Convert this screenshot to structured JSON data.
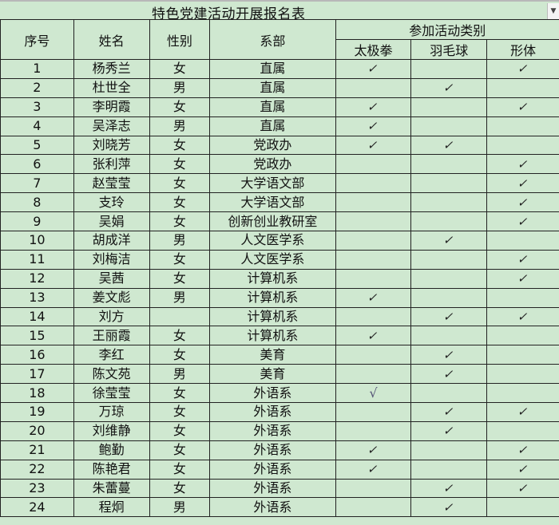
{
  "sheet": {
    "title": "特色党建活动开展报名表",
    "dropdown_icon": "triangle-down-icon",
    "headers": {
      "index": "序号",
      "name": "姓名",
      "gender": "性别",
      "department": "系部",
      "activity_group": "参加活动类别",
      "activities": [
        "太极拳",
        "羽毛球",
        "形体"
      ]
    },
    "rows": [
      {
        "index": "1",
        "name": "杨秀兰",
        "gender": "女",
        "department": "直属",
        "checks": [
          "✓",
          "",
          "✓"
        ]
      },
      {
        "index": "2",
        "name": "杜世全",
        "gender": "男",
        "department": "直属",
        "checks": [
          "",
          "✓",
          ""
        ]
      },
      {
        "index": "3",
        "name": "李明霞",
        "gender": "女",
        "department": "直属",
        "checks": [
          "✓",
          "",
          "✓"
        ]
      },
      {
        "index": "4",
        "name": "吴泽志",
        "gender": "男",
        "department": "直属",
        "checks": [
          "✓",
          "",
          ""
        ]
      },
      {
        "index": "5",
        "name": "刘晓芳",
        "gender": "女",
        "department": "党政办",
        "checks": [
          "✓",
          "✓",
          ""
        ]
      },
      {
        "index": "6",
        "name": "张利萍",
        "gender": "女",
        "department": "党政办",
        "checks": [
          "",
          "",
          "✓"
        ]
      },
      {
        "index": "7",
        "name": "赵莹莹",
        "gender": "女",
        "department": "大学语文部",
        "checks": [
          "",
          "",
          "✓"
        ]
      },
      {
        "index": "8",
        "name": "支玲",
        "gender": "女",
        "department": "大学语文部",
        "checks": [
          "",
          "",
          "✓"
        ]
      },
      {
        "index": "9",
        "name": "吴娟",
        "gender": "女",
        "department": "创新创业教研室",
        "checks": [
          "",
          "",
          "✓"
        ]
      },
      {
        "index": "10",
        "name": "胡成洋",
        "gender": "男",
        "department": "人文医学系",
        "checks": [
          "",
          "✓",
          ""
        ]
      },
      {
        "index": "11",
        "name": "刘梅洁",
        "gender": "女",
        "department": "人文医学系",
        "checks": [
          "",
          "",
          "✓"
        ]
      },
      {
        "index": "12",
        "name": "吴茜",
        "gender": "女",
        "department": "计算机系",
        "checks": [
          "",
          "",
          "✓"
        ]
      },
      {
        "index": "13",
        "name": "姜文彪",
        "gender": "男",
        "department": "计算机系",
        "checks": [
          "✓",
          "",
          ""
        ]
      },
      {
        "index": "14",
        "name": "刘方",
        "gender": "",
        "department": "计算机系",
        "checks": [
          "",
          "✓",
          "✓"
        ]
      },
      {
        "index": "15",
        "name": "王丽霞",
        "gender": "女",
        "department": "计算机系",
        "checks": [
          "✓",
          "",
          ""
        ]
      },
      {
        "index": "16",
        "name": "李红",
        "gender": "女",
        "department": "美育",
        "checks": [
          "",
          "✓",
          ""
        ]
      },
      {
        "index": "17",
        "name": "陈文苑",
        "gender": "男",
        "department": "美育",
        "checks": [
          "",
          "✓",
          ""
        ]
      },
      {
        "index": "18",
        "name": "徐莹莹",
        "gender": "女",
        "department": "外语系",
        "checks": [
          "√",
          "",
          ""
        ]
      },
      {
        "index": "19",
        "name": "万琼",
        "gender": "女",
        "department": "外语系",
        "checks": [
          "",
          "✓",
          "✓"
        ]
      },
      {
        "index": "20",
        "name": "刘维静",
        "gender": "女",
        "department": "外语系",
        "checks": [
          "",
          "✓",
          ""
        ]
      },
      {
        "index": "21",
        "name": "鲍勤",
        "gender": "女",
        "department": "外语系",
        "checks": [
          "✓",
          "",
          "✓"
        ]
      },
      {
        "index": "22",
        "name": "陈艳君",
        "gender": "女",
        "department": "外语系",
        "checks": [
          "✓",
          "",
          "✓"
        ]
      },
      {
        "index": "23",
        "name": "朱蕾蔓",
        "gender": "女",
        "department": "外语系",
        "checks": [
          "",
          "✓",
          "✓"
        ]
      },
      {
        "index": "24",
        "name": "程炯",
        "gender": "男",
        "department": "外语系",
        "checks": [
          "",
          "✓",
          ""
        ]
      }
    ]
  }
}
